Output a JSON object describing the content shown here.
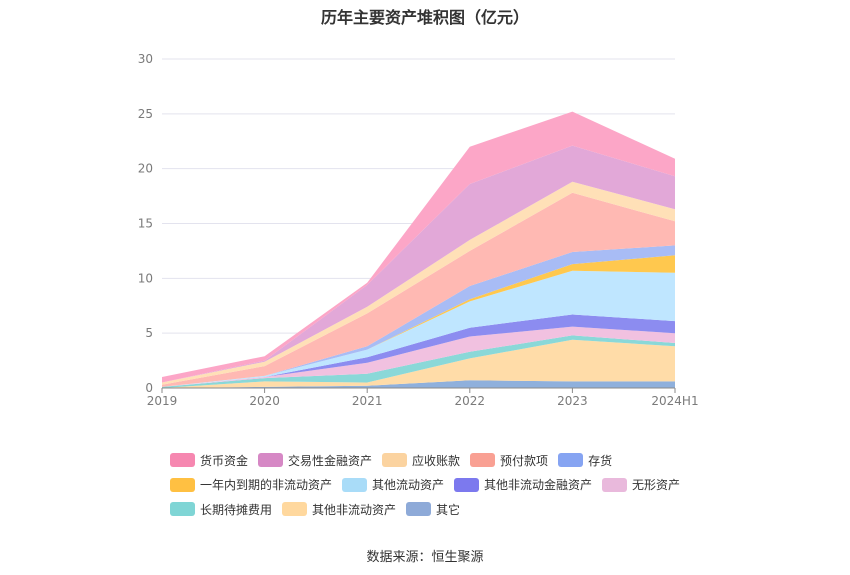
{
  "chart_data": {
    "type": "area",
    "stacked": true,
    "title": "历年主要资产堆积图（亿元）",
    "source": "数据来源：恒生聚源",
    "categories": [
      "2019",
      "2020",
      "2021",
      "2022",
      "2023",
      "2024H1"
    ],
    "ylim": [
      0,
      30
    ],
    "yticks": [
      0,
      5,
      10,
      15,
      20,
      25,
      30
    ],
    "grid": true,
    "legend_position": "bottom",
    "series": [
      {
        "name": "其它",
        "color": "#8fb0dc",
        "values": [
          0.0,
          0.1,
          0.2,
          0.7,
          0.6,
          0.6
        ]
      },
      {
        "name": "其他非流动资产",
        "color": "#ffdca8",
        "values": [
          0.0,
          0.5,
          0.3,
          2.0,
          3.8,
          3.2
        ]
      },
      {
        "name": "长期待摊费用",
        "color": "#8ad8d8",
        "values": [
          0.1,
          0.3,
          0.8,
          0.6,
          0.4,
          0.3
        ]
      },
      {
        "name": "无形资产",
        "color": "#f1c1e0",
        "values": [
          0.0,
          0.1,
          1.0,
          1.4,
          0.8,
          0.9
        ]
      },
      {
        "name": "其他非流动金融资产",
        "color": "#8c8cf0",
        "values": [
          0.0,
          0.0,
          0.5,
          0.8,
          1.1,
          1.1
        ]
      },
      {
        "name": "其他流动资产",
        "color": "#bfe6ff",
        "values": [
          0.0,
          0.1,
          0.7,
          2.4,
          4.0,
          4.4
        ]
      },
      {
        "name": "一年内到期的非流动资产",
        "color": "#ffc84e",
        "values": [
          0.0,
          0.0,
          0.0,
          0.2,
          0.6,
          1.6
        ]
      },
      {
        "name": "存货",
        "color": "#a8bcf5",
        "values": [
          0.0,
          0.0,
          0.3,
          1.2,
          1.1,
          0.9
        ]
      },
      {
        "name": "预付款项",
        "color": "#ffb9b3",
        "values": [
          0.2,
          0.9,
          3.0,
          3.2,
          5.4,
          2.2
        ]
      },
      {
        "name": "应收账款",
        "color": "#ffe0b7",
        "values": [
          0.2,
          0.4,
          0.6,
          1.0,
          1.0,
          1.1
        ]
      },
      {
        "name": "交易性金融资产",
        "color": "#e2a8d8",
        "values": [
          0.0,
          0.1,
          2.0,
          5.1,
          3.3,
          3.0
        ]
      },
      {
        "name": "货币资金",
        "color": "#fca6c7",
        "values": [
          0.5,
          0.4,
          0.2,
          3.4,
          3.1,
          1.6
        ]
      }
    ],
    "legend_rows": [
      [
        {
          "name": "货币资金",
          "color": "#f687b0"
        },
        {
          "name": "交易性金融资产",
          "color": "#d688c5"
        },
        {
          "name": "应收账款",
          "color": "#fbd3a0"
        },
        {
          "name": "预付款项",
          "color": "#f9a093"
        },
        {
          "name": "存货",
          "color": "#86a4f2"
        }
      ],
      [
        {
          "name": "一年内到期的非流动资产",
          "color": "#ffc042"
        },
        {
          "name": "其他流动资产",
          "color": "#a9dcf8"
        },
        {
          "name": "其他非流动金融资产",
          "color": "#7c79ee"
        },
        {
          "name": "无形资产",
          "color": "#e9b9dc"
        }
      ],
      [
        {
          "name": "长期待摊费用",
          "color": "#7fd5d5"
        },
        {
          "name": "其他非流动资产",
          "color": "#ffd89e"
        },
        {
          "name": "其它",
          "color": "#8eaad8"
        }
      ]
    ]
  }
}
